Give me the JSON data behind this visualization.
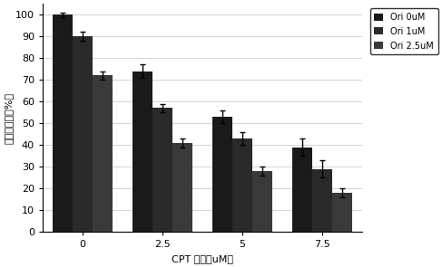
{
  "groups": [
    0,
    2.5,
    5,
    7.5
  ],
  "group_labels": [
    "0",
    "2.5",
    "5",
    "7.5"
  ],
  "series": [
    {
      "label": "Ori 0uM",
      "values": [
        100,
        74,
        53,
        39
      ],
      "errors": [
        1,
        3,
        3,
        4
      ],
      "color": "#1a1a1a"
    },
    {
      "label": "Ori 1uM",
      "values": [
        90,
        57,
        43,
        29
      ],
      "errors": [
        2,
        2,
        3,
        4
      ],
      "color": "#2a2a2a"
    },
    {
      "label": "Ori 2.5uM",
      "values": [
        72,
        41,
        28,
        18
      ],
      "errors": [
        2,
        2,
        2,
        2
      ],
      "color": "#3a3a3a"
    }
  ],
  "ylabel": "细胞存活率（%）",
  "xlabel": "CPT 浓度（uM）",
  "ylim": [
    0,
    105
  ],
  "yticks": [
    0,
    10,
    20,
    30,
    40,
    50,
    60,
    70,
    80,
    90,
    100
  ],
  "bar_width": 0.25,
  "background_color": "#ffffff",
  "grid_color": "#cccccc",
  "axis_fontsize": 8,
  "legend_fontsize": 7,
  "tick_fontsize": 8
}
